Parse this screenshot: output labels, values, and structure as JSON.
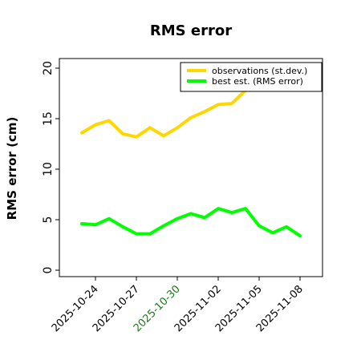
{
  "chart_data": {
    "type": "line",
    "title": "RMS error",
    "xlabel": "",
    "ylabel": "RMS error (cm)",
    "ylim": [
      0,
      21
    ],
    "yticks": [
      0,
      5,
      10,
      15,
      20
    ],
    "xticks": [
      "2025-10-24",
      "2025-10-27",
      "2025-10-30",
      "2025-11-02",
      "2025-11-05",
      "2025-11-08"
    ],
    "highlighted_tick": "2025-10-30",
    "highlight_color": "#1a7a1a",
    "grid": false,
    "legend_position": "top-right",
    "x": [
      "2025-10-23",
      "2025-10-24",
      "2025-10-25",
      "2025-10-26",
      "2025-10-27",
      "2025-10-28",
      "2025-10-29",
      "2025-10-30",
      "2025-10-31",
      "2025-11-01",
      "2025-11-02",
      "2025-11-03",
      "2025-11-04",
      "2025-11-05",
      "2025-11-06",
      "2025-11-07",
      "2025-11-08"
    ],
    "series": [
      {
        "name": "observations (st.dev.)",
        "color": "#ffd700",
        "values": [
          13.6,
          14.4,
          14.8,
          13.5,
          13.2,
          14.1,
          13.3,
          14.1,
          15.1,
          15.7,
          16.4,
          16.5,
          17.8,
          null,
          null,
          null,
          null
        ]
      },
      {
        "name": "best est. (RMS error)",
        "color": "#00ff00",
        "values": [
          4.6,
          4.5,
          5.1,
          4.3,
          3.6,
          3.6,
          4.4,
          5.1,
          5.6,
          5.2,
          6.1,
          5.7,
          6.1,
          4.4,
          3.7,
          4.3,
          3.4
        ]
      }
    ]
  }
}
